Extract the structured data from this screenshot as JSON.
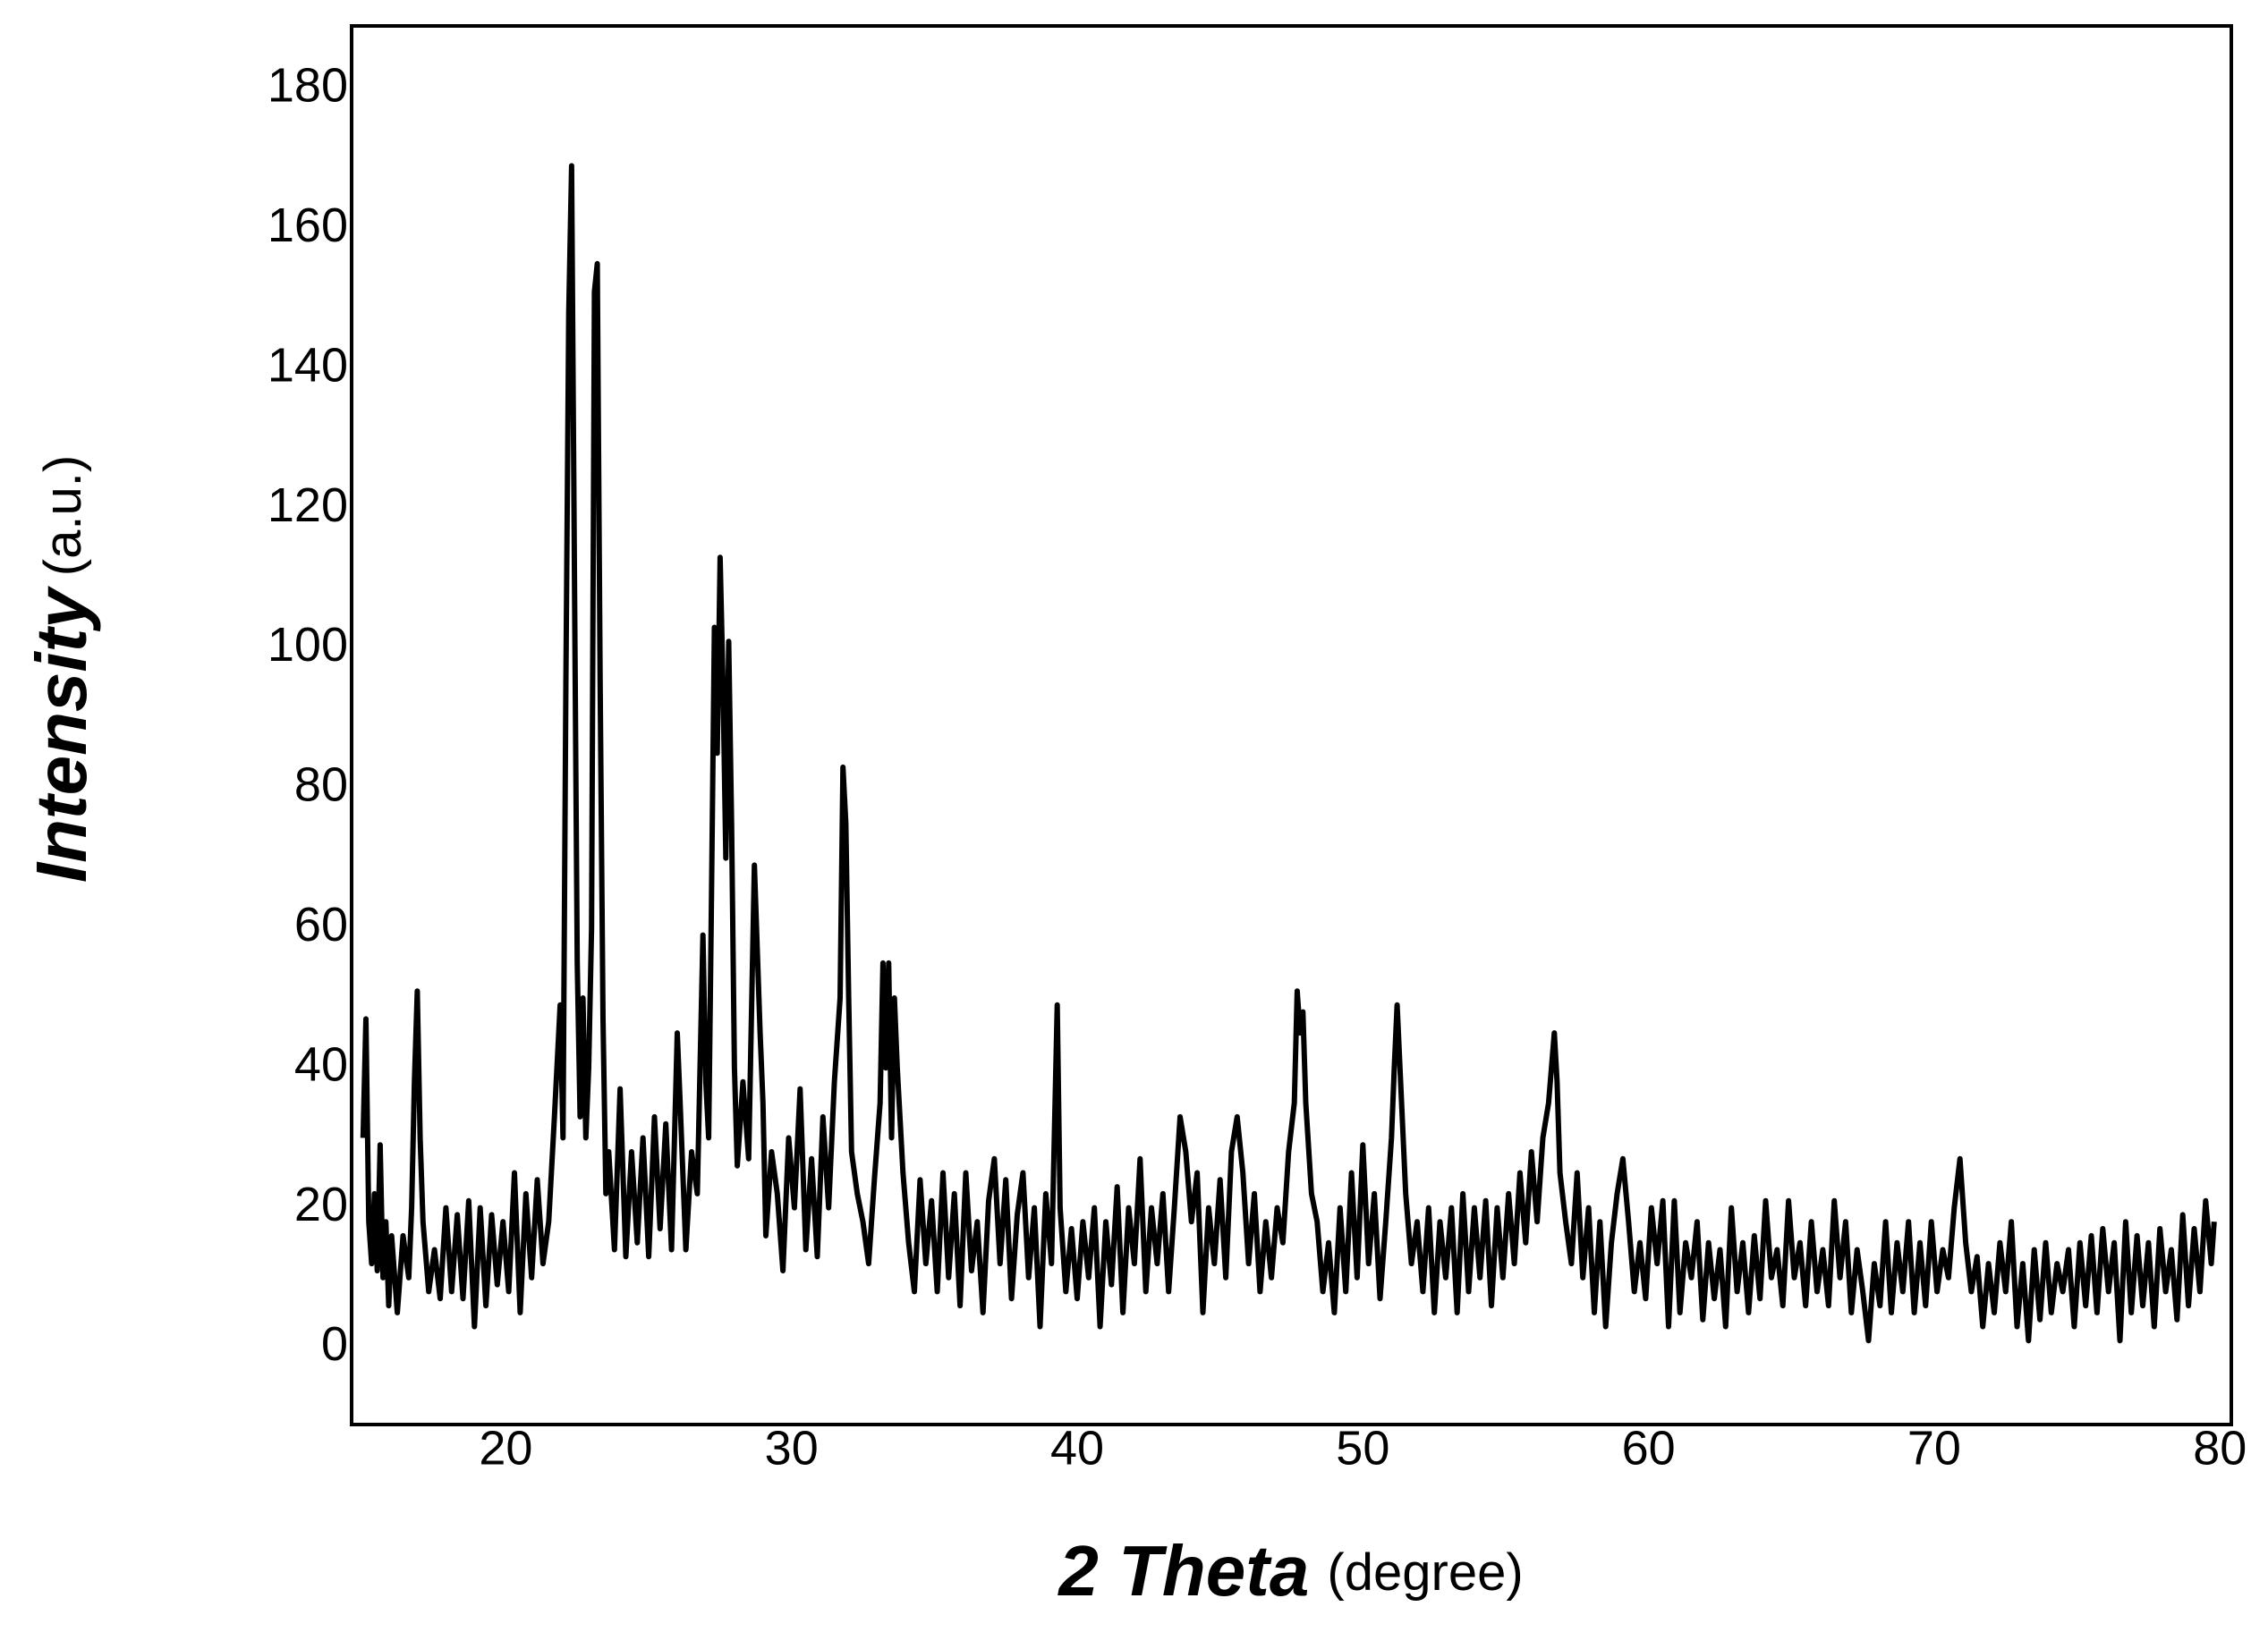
{
  "chart_data": {
    "type": "line",
    "xlabel": {
      "main": "2 Theta",
      "unit": "(degree)"
    },
    "ylabel": {
      "main": "Intensity",
      "unit": "(a.u.)"
    },
    "xlim": [
      14.6,
      80.4
    ],
    "ylim": [
      -11,
      189
    ],
    "xticks": [
      20,
      30,
      40,
      50,
      60,
      70,
      80
    ],
    "yticks": [
      0,
      20,
      40,
      60,
      80,
      100,
      120,
      140,
      160,
      180
    ],
    "grid": false,
    "series": [
      {
        "color": "#000000",
        "x": [
          15.0,
          15.1,
          15.2,
          15.3,
          15.4,
          15.5,
          15.6,
          15.7,
          15.8,
          15.9,
          16.0,
          16.2,
          16.4,
          16.6,
          16.7,
          16.8,
          16.9,
          17.0,
          17.1,
          17.3,
          17.5,
          17.7,
          17.9,
          18.1,
          18.3,
          18.5,
          18.7,
          18.9,
          19.1,
          19.3,
          19.5,
          19.7,
          19.9,
          20.1,
          20.3,
          20.5,
          20.7,
          20.9,
          21.1,
          21.3,
          21.5,
          21.7,
          21.9,
          22.0,
          22.1,
          22.2,
          22.3,
          22.4,
          22.5,
          22.6,
          22.7,
          22.8,
          22.9,
          23.0,
          23.1,
          23.2,
          23.3,
          23.4,
          23.5,
          23.6,
          23.8,
          24.0,
          24.2,
          24.4,
          24.6,
          24.8,
          25.0,
          25.2,
          25.4,
          25.6,
          25.8,
          26.0,
          26.1,
          26.3,
          26.5,
          26.7,
          26.9,
          27.0,
          27.1,
          27.2,
          27.3,
          27.4,
          27.5,
          27.6,
          27.7,
          27.8,
          27.9,
          28.0,
          28.1,
          28.3,
          28.5,
          28.7,
          28.9,
          29.0,
          29.1,
          29.3,
          29.5,
          29.7,
          29.9,
          30.1,
          30.3,
          30.5,
          30.7,
          30.9,
          31.1,
          31.3,
          31.5,
          31.7,
          31.8,
          31.9,
          32.0,
          32.1,
          32.3,
          32.5,
          32.7,
          32.9,
          33.1,
          33.2,
          33.3,
          33.4,
          33.5,
          33.6,
          33.7,
          33.9,
          34.1,
          34.3,
          34.5,
          34.7,
          34.9,
          35.1,
          35.3,
          35.5,
          35.7,
          35.9,
          36.1,
          36.3,
          36.5,
          36.7,
          36.9,
          37.1,
          37.3,
          37.5,
          37.7,
          37.9,
          38.1,
          38.3,
          38.5,
          38.7,
          38.9,
          39.1,
          39.3,
          39.4,
          39.6,
          39.8,
          40.0,
          40.2,
          40.4,
          40.6,
          40.8,
          41.0,
          41.2,
          41.4,
          41.6,
          41.8,
          42.0,
          42.2,
          42.4,
          42.6,
          42.8,
          43.0,
          43.2,
          43.4,
          43.6,
          43.8,
          44.0,
          44.2,
          44.4,
          44.6,
          44.8,
          45.0,
          45.2,
          45.4,
          45.6,
          45.8,
          46.0,
          46.2,
          46.4,
          46.6,
          46.8,
          47.0,
          47.2,
          47.4,
          47.6,
          47.7,
          47.8,
          47.9,
          48.0,
          48.2,
          48.4,
          48.6,
          48.8,
          49.0,
          49.2,
          49.4,
          49.6,
          49.8,
          50.0,
          50.2,
          50.4,
          50.6,
          50.8,
          51.0,
          51.1,
          51.2,
          51.3,
          51.5,
          51.7,
          51.9,
          52.1,
          52.3,
          52.5,
          52.7,
          52.9,
          53.1,
          53.3,
          53.5,
          53.7,
          53.9,
          54.1,
          54.3,
          54.5,
          54.7,
          54.9,
          55.1,
          55.3,
          55.5,
          55.7,
          55.9,
          56.1,
          56.3,
          56.5,
          56.7,
          56.8,
          56.9,
          57.1,
          57.3,
          57.5,
          57.7,
          57.9,
          58.1,
          58.3,
          58.5,
          58.7,
          58.9,
          59.1,
          59.3,
          59.5,
          59.7,
          59.9,
          60.1,
          60.3,
          60.5,
          60.7,
          60.9,
          61.1,
          61.3,
          61.5,
          61.7,
          61.9,
          62.1,
          62.3,
          62.5,
          62.7,
          62.9,
          63.1,
          63.3,
          63.5,
          63.7,
          63.9,
          64.1,
          64.3,
          64.5,
          64.7,
          64.9,
          65.1,
          65.3,
          65.5,
          65.7,
          65.9,
          66.1,
          66.3,
          66.5,
          66.7,
          66.9,
          67.1,
          67.3,
          67.5,
          67.7,
          67.9,
          68.1,
          68.3,
          68.5,
          68.7,
          68.9,
          69.1,
          69.3,
          69.5,
          69.7,
          69.9,
          70.1,
          70.3,
          70.5,
          70.7,
          70.9,
          71.1,
          71.3,
          71.5,
          71.7,
          71.9,
          72.1,
          72.3,
          72.5,
          72.7,
          72.9,
          73.1,
          73.3,
          73.5,
          73.7,
          73.9,
          74.1,
          74.3,
          74.5,
          74.7,
          74.9,
          75.1,
          75.3,
          75.5,
          75.7,
          75.9,
          76.1,
          76.3,
          76.5,
          76.7,
          76.9,
          77.1,
          77.3,
          77.5,
          77.7,
          77.9,
          78.1,
          78.3,
          78.5,
          78.7,
          78.9,
          79.1,
          79.3,
          79.5,
          79.7,
          79.8
        ],
        "values": [
          30,
          47,
          18,
          12,
          22,
          11,
          29,
          10,
          18,
          6,
          16,
          5,
          16,
          10,
          20,
          38,
          51,
          30,
          18,
          8,
          14,
          7,
          20,
          8,
          19,
          7,
          21,
          3,
          20,
          6,
          19,
          9,
          18,
          8,
          25,
          5,
          22,
          10,
          24,
          12,
          18,
          33,
          49,
          30,
          95,
          148,
          169,
          110,
          55,
          33,
          50,
          30,
          40,
          60,
          151,
          155,
          95,
          47,
          22,
          28,
          14,
          37,
          13,
          28,
          15,
          30,
          13,
          33,
          17,
          32,
          14,
          45,
          35,
          14,
          28,
          22,
          59,
          38,
          30,
          65,
          103,
          85,
          113,
          95,
          70,
          101,
          75,
          40,
          26,
          38,
          27,
          69,
          45,
          35,
          16,
          28,
          22,
          11,
          30,
          20,
          37,
          14,
          27,
          13,
          33,
          20,
          38,
          50,
          83,
          75,
          50,
          28,
          22,
          18,
          12,
          24,
          35,
          55,
          40,
          55,
          30,
          50,
          40,
          25,
          15,
          8,
          24,
          12,
          21,
          8,
          25,
          10,
          22,
          6,
          25,
          11,
          18,
          5,
          21,
          27,
          12,
          24,
          7,
          19,
          25,
          10,
          20,
          3,
          22,
          12,
          49,
          20,
          8,
          17,
          7,
          18,
          10,
          20,
          3,
          18,
          9,
          23,
          5,
          20,
          12,
          27,
          8,
          20,
          12,
          22,
          8,
          20,
          33,
          28,
          18,
          25,
          5,
          20,
          12,
          24,
          10,
          28,
          33,
          25,
          12,
          22,
          8,
          18,
          10,
          20,
          15,
          28,
          35,
          51,
          45,
          48,
          35,
          22,
          18,
          8,
          15,
          5,
          20,
          8,
          25,
          10,
          29,
          12,
          22,
          7,
          18,
          30,
          40,
          49,
          40,
          22,
          12,
          18,
          8,
          20,
          5,
          18,
          10,
          20,
          5,
          22,
          8,
          20,
          10,
          21,
          6,
          20,
          10,
          22,
          12,
          25,
          15,
          28,
          18,
          30,
          35,
          45,
          38,
          25,
          18,
          12,
          25,
          10,
          20,
          5,
          18,
          3,
          15,
          22,
          27,
          18,
          8,
          15,
          7,
          20,
          12,
          21,
          3,
          21,
          5,
          15,
          10,
          18,
          4,
          15,
          7,
          14,
          3,
          20,
          8,
          15,
          5,
          16,
          7,
          21,
          10,
          14,
          6,
          21,
          10,
          15,
          6,
          18,
          8,
          14,
          6,
          21,
          10,
          18,
          5,
          14,
          8,
          1,
          12,
          6,
          18,
          5,
          15,
          8,
          18,
          5,
          15,
          6,
          18,
          8,
          14,
          10,
          20,
          27,
          15,
          8,
          13,
          3,
          12,
          5,
          15,
          8,
          18,
          3,
          12,
          1,
          14,
          4,
          15,
          5,
          12,
          8,
          14,
          3,
          15,
          6,
          16,
          5,
          17,
          8,
          15,
          1,
          18,
          5,
          16,
          6,
          15,
          3,
          17,
          8,
          14,
          4,
          19,
          6,
          17,
          8,
          21,
          12,
          18
        ]
      }
    ]
  }
}
